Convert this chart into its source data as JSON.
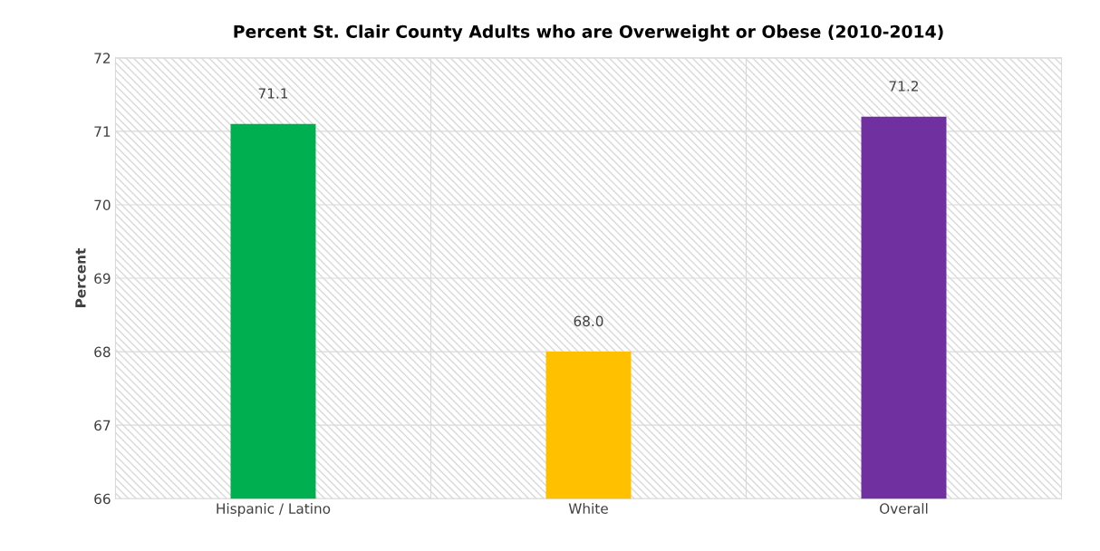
{
  "chart_data": {
    "type": "bar",
    "title": "Percent St. Clair County Adults who are Overweight or Obese (2010-2014)",
    "ylabel": "Percent",
    "categories": [
      "Hispanic / Latino",
      "White",
      "Overall"
    ],
    "values": [
      71.1,
      68.0,
      71.2
    ],
    "colors": [
      "#00b050",
      "#ffc000",
      "#7030a0"
    ],
    "value_labels": [
      "71.1",
      "68.0",
      "71.2"
    ],
    "ylim": [
      66,
      72
    ],
    "yticks": [
      66,
      67,
      68,
      69,
      70,
      71,
      72
    ],
    "grid": true
  }
}
